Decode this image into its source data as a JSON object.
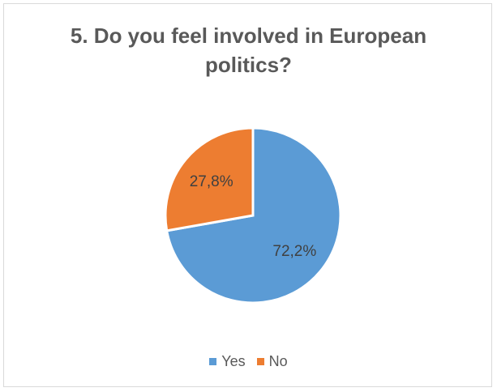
{
  "chart_data": {
    "type": "pie",
    "title": "5. Do you feel involved in European politics?",
    "title_lines": [
      "5. Do you feel involved in European",
      "politics?"
    ],
    "categories": [
      "Yes",
      "No"
    ],
    "values": [
      72.2,
      27.8
    ],
    "data_labels": [
      "72,2%",
      "27,8%"
    ],
    "colors": [
      "#5b9bd5",
      "#ed7d31"
    ],
    "legend_position": "bottom"
  }
}
